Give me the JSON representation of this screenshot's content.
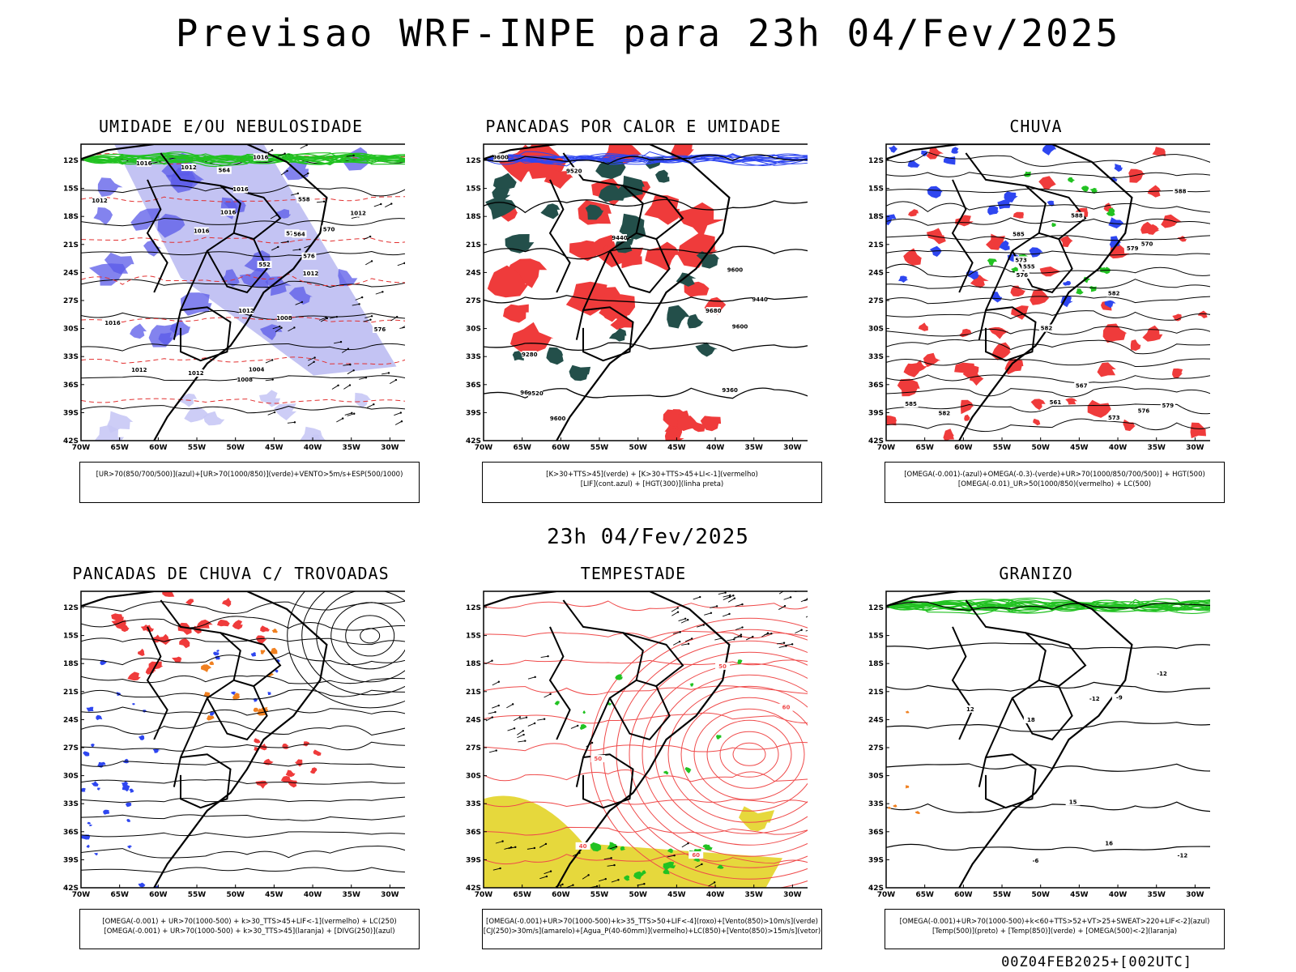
{
  "header": {
    "title": "Previsao WRF-INPE  para 23h 04/Fev/2025"
  },
  "subtitle": "23h 04/Fev/2025",
  "footer": "00Z04FEB2025+[002UTC]",
  "axes": {
    "lat_labels": [
      "12S",
      "15S",
      "18S",
      "21S",
      "24S",
      "27S",
      "30S",
      "33S",
      "36S",
      "39S",
      "42S"
    ],
    "lon_labels": [
      "70W",
      "65W",
      "60W",
      "55W",
      "50W",
      "45W",
      "40W",
      "35W",
      "30W"
    ]
  },
  "panels": [
    {
      "id": "umidade",
      "title": "UMIDADE E/OU NEBULOSIDADE",
      "legend": [
        "[UR>70(850/700/500)](azul)+[UR>70(1000/850)](verde)+VENTO>5m/s+ESP(500/1000)"
      ],
      "contour_labels": [
        "1012",
        "1008",
        "1004",
        "1016",
        "1012",
        "1016",
        "1012",
        "1016",
        "1012",
        "1012",
        "1008",
        "1016",
        "576",
        "570",
        "564",
        "558",
        "552",
        "576",
        "570",
        "564",
        "1016",
        "1012",
        "1016",
        "1012"
      ]
    },
    {
      "id": "pancadas_calor",
      "title": "PANCADAS POR CALOR E UMIDADE",
      "legend": [
        "[K>30+TTS>45](verde) + [K>30+TTS>45+LI<-1](vermelho)",
        "[LIF](cont.azul) + [HGT(300)](linha preta)"
      ],
      "contour_labels": [
        "9600",
        "9600",
        "9600",
        "9600",
        "9600",
        "9680",
        "9440",
        "9520",
        "9520",
        "9440",
        "9360",
        "9280"
      ]
    },
    {
      "id": "chuva",
      "title": "CHUVA",
      "legend": [
        "[OMEGA(-0.001)-(azul)+OMEGA(-0.3)-(verde)+UR>70(1000/850/700/500)] + HGT(500)",
        "[OMEGA(-0.01)_UR>50(1000/850)(vermelho) + LC(500)"
      ],
      "contour_labels": [
        "582",
        "588",
        "585",
        "582",
        "579",
        "576",
        "573",
        "570",
        "567",
        "561",
        "555",
        "573",
        "576",
        "579",
        "582",
        "585",
        "588"
      ]
    },
    {
      "id": "trovoadas",
      "title": "PANCADAS DE CHUVA C/ TROVOADAS",
      "legend": [
        "[OMEGA(-0.001) + UR>70(1000-500) + k>30_TTS>45+LIF<-1](vermelho) + LC(250)",
        "[OMEGA(-0.001) + UR>70(1000-500) + k>30_TTS>45](laranja) + [DIVG(250)](azul)"
      ],
      "contour_labels": []
    },
    {
      "id": "tempestade",
      "title": "TEMPESTADE",
      "legend": [
        "[OMEGA(-0.001)+UR>70(1000-500)+k>35_TTS>50+LIF<-4](roxo)+[Vento(850)>10m/s](verde)",
        "[CJ(250)>30m/s](amarelo)+[Agua_P(40-60mm)](vermelho)+LC(850)+[Vento(850)>15m/s](vetor)"
      ],
      "contour_labels": [
        "60",
        "50",
        "40",
        "50",
        "60"
      ]
    },
    {
      "id": "granizo",
      "title": "GRANIZO",
      "legend": [
        "[OMEGA(-0.001)+UR>70(1000-500)+k<60+TTS>52+VT>25+SWEAT>220+LIF<-2](azul)",
        "[Temp(500)](preto) + [Temp(850)](verde) + [OMEGA(500)<-2](laranja)"
      ],
      "contour_labels": [
        "-12",
        "-9",
        "-6",
        "-12",
        "16",
        "12",
        "15",
        "18",
        "-12"
      ]
    }
  ]
}
